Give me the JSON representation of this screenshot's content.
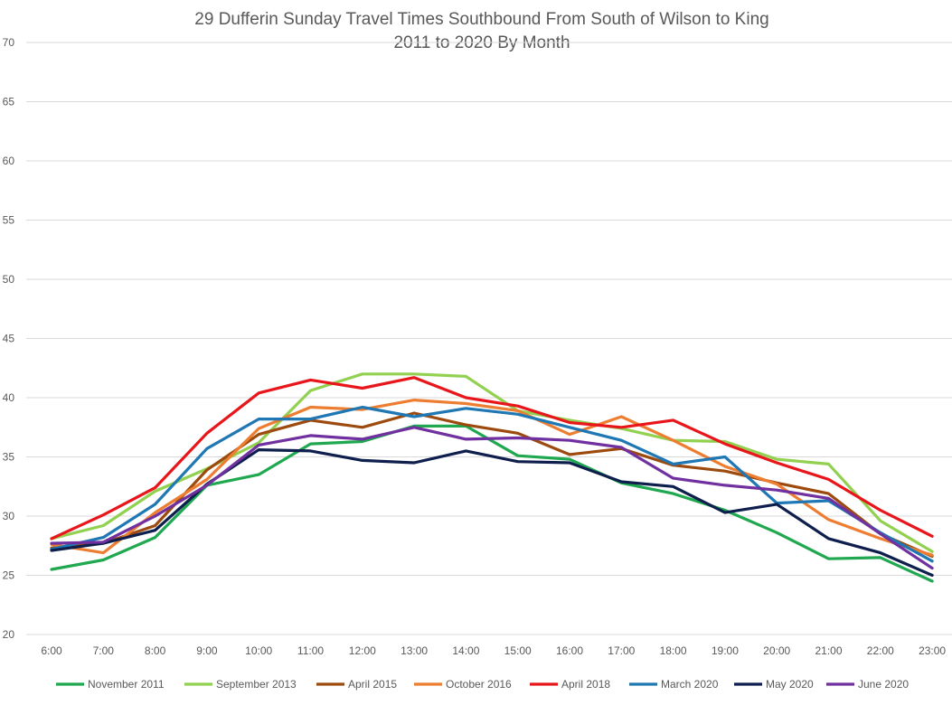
{
  "chart_data": {
    "type": "line",
    "title": [
      "29 Dufferin Sunday Travel Times Southbound From South of Wilson to King",
      "2011 to 2020 By Month"
    ],
    "xlabel": "",
    "ylabel": "",
    "ylim": [
      20,
      70
    ],
    "yticks": [
      "20",
      "25",
      "30",
      "35",
      "40",
      "45",
      "50",
      "55",
      "60",
      "65",
      "70"
    ],
    "grid": true,
    "legend_position": "bottom",
    "categories": [
      "6:00",
      "7:00",
      "8:00",
      "9:00",
      "10:00",
      "11:00",
      "12:00",
      "13:00",
      "14:00",
      "15:00",
      "16:00",
      "17:00",
      "18:00",
      "19:00",
      "20:00",
      "21:00",
      "22:00",
      "23:00"
    ],
    "series": [
      {
        "name": "November 2011",
        "color": "#1fa84f",
        "values": [
          25.5,
          26.3,
          28.2,
          32.6,
          33.5,
          36.1,
          36.3,
          37.6,
          37.6,
          35.1,
          34.8,
          32.8,
          31.9,
          30.5,
          28.6,
          26.4,
          26.5,
          24.5
        ]
      },
      {
        "name": "September 2013",
        "color": "#92d050",
        "values": [
          28.1,
          29.2,
          32.1,
          34.0,
          36.2,
          40.6,
          42.0,
          42.0,
          41.8,
          38.9,
          38.1,
          37.4,
          36.4,
          36.3,
          34.8,
          34.4,
          29.6,
          27.0
        ]
      },
      {
        "name": "April 2015",
        "color": "#9c4a0e",
        "values": [
          27.3,
          27.7,
          29.2,
          33.9,
          36.9,
          38.1,
          37.5,
          38.7,
          37.7,
          37.0,
          35.2,
          35.7,
          34.3,
          33.8,
          32.8,
          31.9,
          28.5,
          26.6
        ]
      },
      {
        "name": "October 2016",
        "color": "#ed7d31",
        "values": [
          27.6,
          26.9,
          30.3,
          33.1,
          37.4,
          39.2,
          39.0,
          39.8,
          39.5,
          38.9,
          36.9,
          38.4,
          36.4,
          34.2,
          32.7,
          29.7,
          28.1,
          26.7
        ]
      },
      {
        "name": "April 2018",
        "color": "#e8161b",
        "values": [
          28.1,
          30.1,
          32.4,
          37.0,
          40.4,
          41.5,
          40.8,
          41.7,
          40.0,
          39.3,
          37.9,
          37.5,
          38.1,
          36.1,
          34.5,
          33.1,
          30.5,
          28.3
        ]
      },
      {
        "name": "March 2020",
        "color": "#1f77b4",
        "values": [
          27.2,
          28.2,
          31.0,
          35.7,
          38.2,
          38.2,
          39.2,
          38.4,
          39.1,
          38.6,
          37.5,
          36.4,
          34.4,
          35.0,
          31.1,
          31.3,
          28.6,
          26.2
        ]
      },
      {
        "name": "May 2020",
        "color": "#0e1f4d",
        "values": [
          27.1,
          27.7,
          28.8,
          32.7,
          35.6,
          35.5,
          34.7,
          34.5,
          35.5,
          34.6,
          34.5,
          32.9,
          32.5,
          30.3,
          31.0,
          28.1,
          26.9,
          25.0
        ]
      },
      {
        "name": "June 2020",
        "color": "#7030a0",
        "values": [
          27.7,
          27.8,
          30.0,
          32.6,
          36.0,
          36.8,
          36.5,
          37.5,
          36.5,
          36.6,
          36.4,
          35.8,
          33.2,
          32.6,
          32.2,
          31.5,
          28.5,
          25.6
        ]
      }
    ]
  }
}
